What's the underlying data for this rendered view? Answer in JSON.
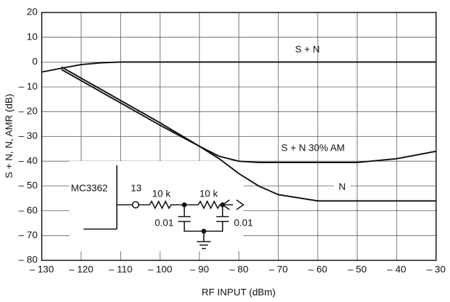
{
  "chart_data": {
    "type": "line",
    "ylabel": "S + N, N, AMR (dB)",
    "xlabel": "RF INPUT (dBm)",
    "x": [
      -130,
      -125,
      -120,
      -115,
      -110,
      -100,
      -90,
      -85,
      -80,
      -75,
      -70,
      -60,
      -50,
      -40,
      -30
    ],
    "series": [
      {
        "name": "S + N",
        "color": "#111111",
        "values": [
          -4,
          -2.5,
          -1,
          -0.3,
          0,
          0,
          0,
          0,
          0,
          0,
          0,
          0,
          0,
          0,
          0
        ]
      },
      {
        "name": "S + N 30% AM",
        "color": "#111111",
        "values": [
          null,
          -3,
          -7.5,
          -12,
          -16.5,
          -25.5,
          -34,
          -38,
          -40,
          -40.5,
          -40.5,
          -40.5,
          -40.5,
          -39,
          -36
        ]
      },
      {
        "name": "N",
        "color": "#111111",
        "values": [
          null,
          -2,
          -6.5,
          -11,
          -15.5,
          -24.5,
          -34,
          -39,
          -45,
          -50,
          -53.5,
          -56,
          -56,
          -56,
          -56
        ]
      }
    ],
    "xlim": [
      -130,
      -30
    ],
    "ylim": [
      -80,
      20
    ],
    "xticks": [
      {
        "value": -130,
        "label": "– 130"
      },
      {
        "value": -120,
        "label": "– 120"
      },
      {
        "value": -110,
        "label": "– 110"
      },
      {
        "value": -100,
        "label": "– 100"
      },
      {
        "value": -90,
        "label": "– 90"
      },
      {
        "value": -80,
        "label": "– 80"
      },
      {
        "value": -70,
        "label": "– 70"
      },
      {
        "value": -60,
        "label": "– 60"
      },
      {
        "value": -50,
        "label": "– 50"
      },
      {
        "value": -40,
        "label": "– 40"
      },
      {
        "value": -30,
        "label": "– 30"
      }
    ],
    "yticks": [
      20,
      10,
      0,
      {
        "value": -10,
        "label": "– 10"
      },
      {
        "value": -20,
        "label": "– 20"
      },
      {
        "value": -30,
        "label": "– 30"
      },
      {
        "value": -40,
        "label": "– 40"
      },
      {
        "value": -50,
        "label": "– 50"
      },
      {
        "value": -60,
        "label": "– 60"
      },
      {
        "value": -70,
        "label": "– 70"
      },
      {
        "value": -80,
        "label": "– 80"
      }
    ],
    "grid": true,
    "schematic": {
      "chip": "MC3362",
      "pin": "13",
      "r1": "10 k",
      "r2": "10 k",
      "c1": "0.01",
      "c2": "0.01"
    }
  }
}
